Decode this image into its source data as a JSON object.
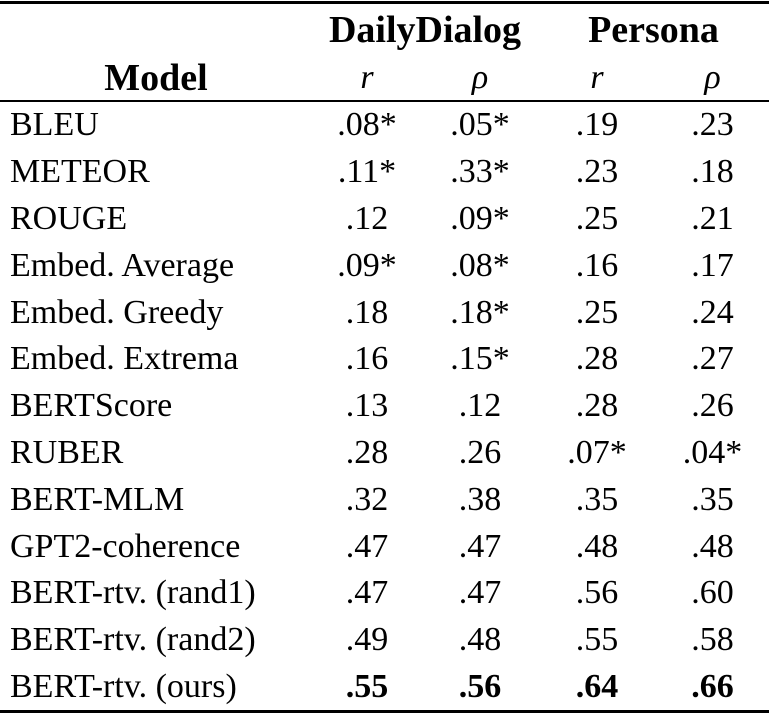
{
  "table": {
    "group_header": {
      "daily_dialog": "DailyDialog",
      "persona": "Persona"
    },
    "sub_header": {
      "model": "Model",
      "dd_r": "r",
      "dd_rho": "ρ",
      "p_r": "r",
      "p_rho": "ρ"
    },
    "rows": [
      {
        "model": "BLEU",
        "values": [
          ".08*",
          ".05*",
          ".19",
          ".23"
        ]
      },
      {
        "model": "METEOR",
        "values": [
          ".11*",
          ".33*",
          ".23",
          ".18"
        ]
      },
      {
        "model": "ROUGE",
        "values": [
          ".12",
          ".09*",
          ".25",
          ".21"
        ]
      },
      {
        "model": "Embed. Average",
        "values": [
          ".09*",
          ".08*",
          ".16",
          ".17"
        ]
      },
      {
        "model": "Embed. Greedy",
        "values": [
          ".18",
          ".18*",
          ".25",
          ".24"
        ]
      },
      {
        "model": "Embed. Extrema",
        "values": [
          ".16",
          ".15*",
          ".28",
          ".27"
        ]
      },
      {
        "model": "BERTScore",
        "values": [
          ".13",
          ".12",
          ".28",
          ".26"
        ]
      },
      {
        "model": "RUBER",
        "values": [
          ".28",
          ".26",
          ".07*",
          ".04*"
        ]
      },
      {
        "model": "BERT-MLM",
        "values": [
          ".32",
          ".38",
          ".35",
          ".35"
        ]
      },
      {
        "model": "GPT2-coherence",
        "values": [
          ".47",
          ".47",
          ".48",
          ".48"
        ]
      },
      {
        "model": "BERT-rtv. (rand1)",
        "values": [
          ".47",
          ".47",
          ".56",
          ".60"
        ]
      },
      {
        "model": "BERT-rtv. (rand2)",
        "values": [
          ".49",
          ".48",
          ".55",
          ".58"
        ]
      },
      {
        "model": "BERT-rtv. (ours)",
        "values": [
          ".55",
          ".56",
          ".64",
          ".66"
        ],
        "bold_values": true
      }
    ],
    "colors": {
      "text": "#000000",
      "background": "#ffffff",
      "rule": "#000000"
    }
  }
}
